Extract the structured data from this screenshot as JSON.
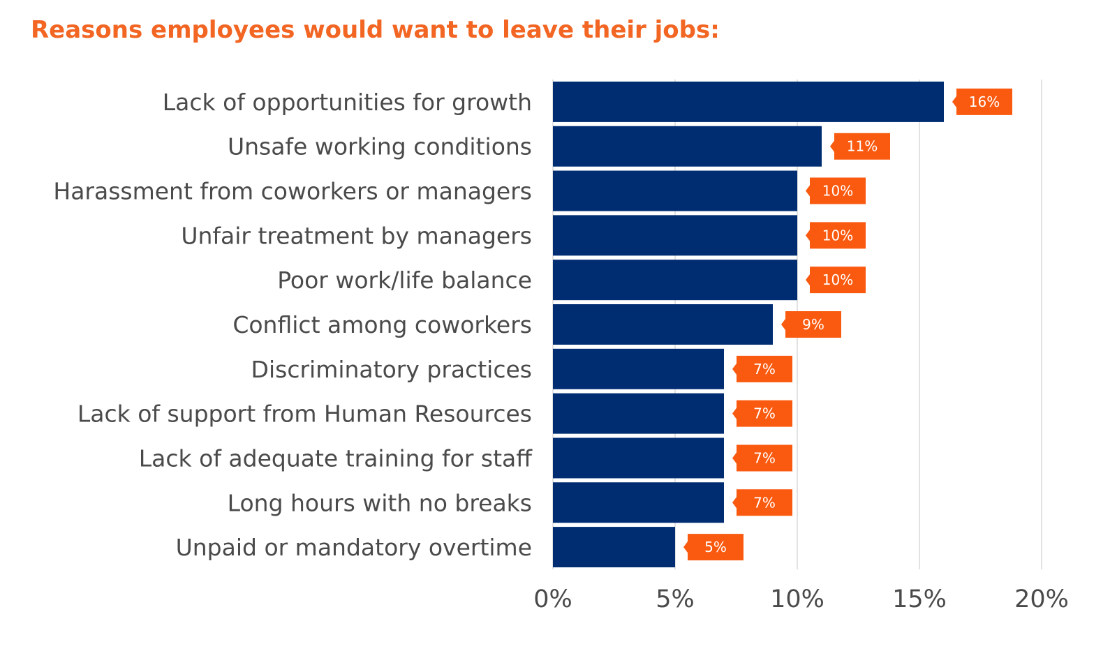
{
  "chart_data": {
    "type": "bar",
    "orientation": "horizontal",
    "title": "Reasons employees would want to leave their jobs:",
    "categories": [
      "Lack of opportunities for growth",
      "Unsafe working conditions",
      "Harassment from coworkers or managers",
      "Unfair treatment by managers",
      "Poor work/life balance",
      "Conflict among coworkers",
      "Discriminatory practices",
      "Lack of support from Human Resources",
      "Lack of adequate training for staff",
      "Long hours with no breaks",
      "Unpaid or mandatory overtime"
    ],
    "values": [
      16,
      11,
      10,
      10,
      10,
      9,
      7,
      7,
      7,
      7,
      5
    ],
    "data_labels": [
      "16%",
      "11%",
      "10%",
      "10%",
      "10%",
      "9%",
      "7%",
      "7%",
      "7%",
      "7%",
      "5%"
    ],
    "xlim": [
      0,
      20
    ],
    "x_ticks": [
      0,
      5,
      10,
      15,
      20
    ],
    "x_tick_labels": [
      "0%",
      "5%",
      "10%",
      "15%",
      "20%"
    ],
    "xlabel": "",
    "ylabel": "",
    "grid": "vertical",
    "legend": "none",
    "colors": {
      "title": "#f26522",
      "bar": "#002d72",
      "data_label_bg": "#fa5a0f",
      "grid": "#d9d9d9"
    }
  }
}
